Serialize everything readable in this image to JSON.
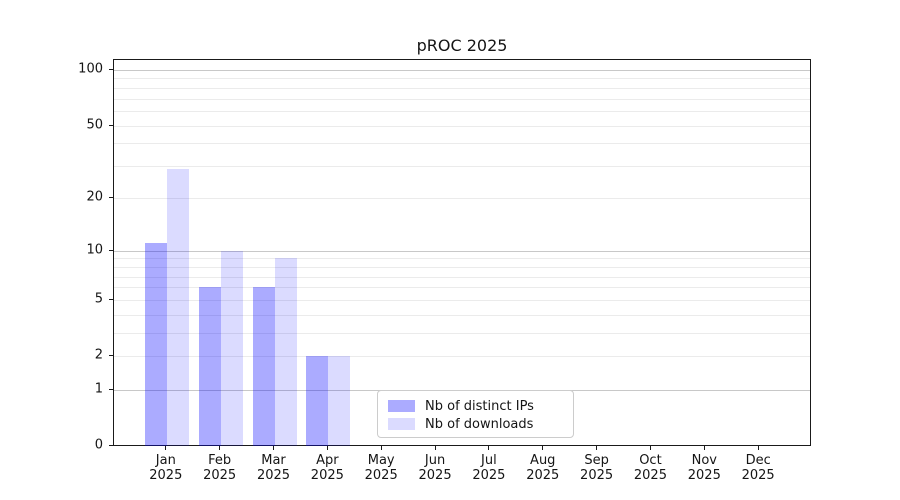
{
  "title": "pROC 2025",
  "legend": {
    "items": [
      {
        "label": "Nb of distinct IPs",
        "color": "rgba(0,0,255,0.33)",
        "color_hex": "#aaaaf5"
      },
      {
        "label": "Nb of downloads",
        "color": "rgba(0,0,255,0.14)",
        "color_hex": "#dcdcf9"
      }
    ]
  },
  "chart_data": {
    "type": "bar",
    "title": "pROC 2025",
    "categories": [
      "Jan 2025",
      "Feb 2025",
      "Mar 2025",
      "Apr 2025",
      "May 2025",
      "Jun 2025",
      "Jul 2025",
      "Aug 2025",
      "Sep 2025",
      "Oct 2025",
      "Nov 2025",
      "Dec 2025"
    ],
    "series": [
      {
        "name": "Nb of distinct IPs",
        "color": "rgba(0,0,255,0.33)",
        "color_hex": "#aaaaf5",
        "values": [
          11,
          6,
          6,
          2,
          0,
          0,
          0,
          0,
          0,
          0,
          0,
          0
        ]
      },
      {
        "name": "Nb of downloads",
        "color": "rgba(0,0,255,0.14)",
        "color_hex": "#dcdcf9",
        "values": [
          29,
          10,
          9,
          2,
          0,
          0,
          0,
          0,
          0,
          0,
          0,
          0
        ]
      }
    ],
    "xlabel": "",
    "ylabel": "",
    "yscale": "log1p",
    "y_ticks": [
      0,
      1,
      2,
      5,
      10,
      20,
      50,
      100
    ],
    "y_major_gridlines": [
      1,
      10,
      100
    ],
    "y_minor_gridlines": [
      2,
      3,
      4,
      5,
      6,
      7,
      8,
      9,
      20,
      30,
      40,
      50,
      60,
      70,
      80,
      90
    ],
    "ylim": [
      0,
      113
    ],
    "grid": true,
    "legend_position": "inside lower-center",
    "colors": {
      "grid_major": "#c8c8c8",
      "grid_minor": "#ebebeb",
      "axis": "#1a1a1a",
      "text": "#151515",
      "background": "#ffffff"
    }
  }
}
